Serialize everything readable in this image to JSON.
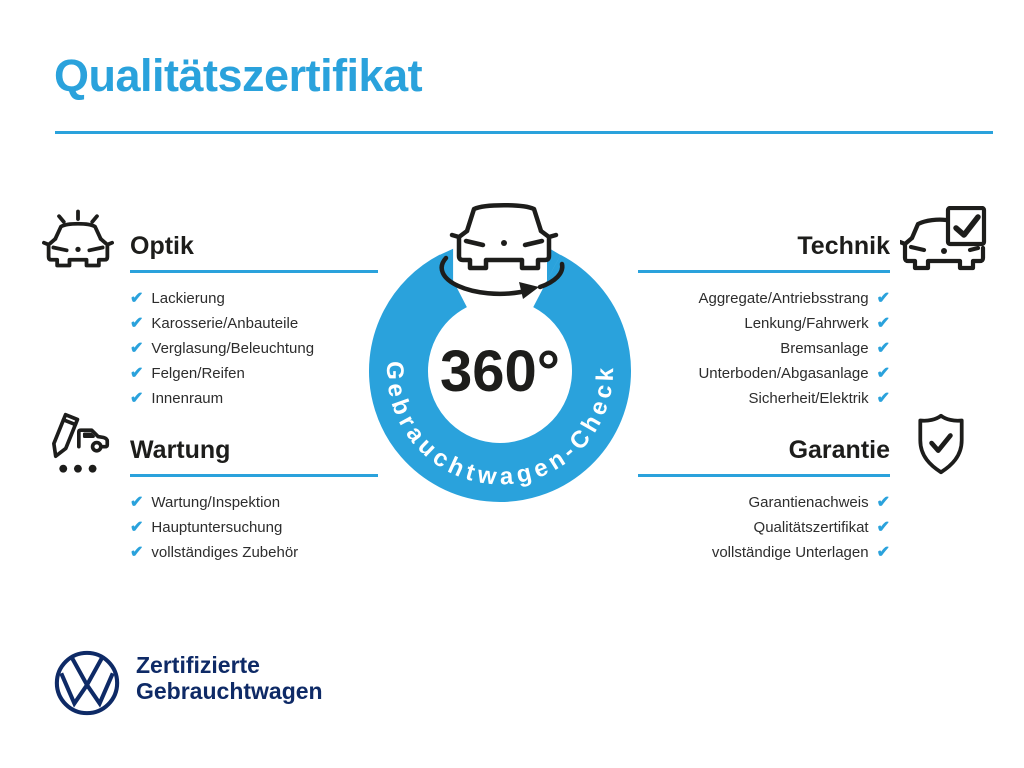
{
  "page": {
    "title": "Qualitätszertifikat"
  },
  "check_glyph": "✔",
  "colors": {
    "accent_blue": "#2AA2DC",
    "navy_blue": "#0E2A66",
    "dark_text": "#1D1D1B",
    "background": "#FFFFFF"
  },
  "center_badge": {
    "degree_label": "360°",
    "ring_label": "Gebrauchtwagen-Check",
    "icon": "rotating-car-icon"
  },
  "sections": [
    {
      "id": "optik",
      "title": "Optik",
      "icon": "shining-car-icon",
      "items": [
        "Lackierung",
        "Karosserie/Anbauteile",
        "Verglasung/Beleuchtung",
        "Felgen/Reifen",
        "Innenraum"
      ]
    },
    {
      "id": "technik",
      "title": "Technik",
      "icon": "car-checkbox-icon",
      "items": [
        "Aggregate/Antriebsstrang",
        "Lenkung/Fahrwerk",
        "Bremsanlage",
        "Unterboden/Abgasanlage",
        "Sicherheit/Elektrik"
      ]
    },
    {
      "id": "wartung",
      "title": "Wartung",
      "icon": "pencil-van-icon",
      "items": [
        "Wartung/Inspektion",
        "Hauptuntersuchung",
        "vollständiges Zubehör"
      ]
    },
    {
      "id": "garantie",
      "title": "Garantie",
      "icon": "shield-check-icon",
      "items": [
        "Garantienachweis",
        "Qualitätszertifikat",
        "vollständige Unterlagen"
      ]
    }
  ],
  "footer": {
    "logo": "vw-logo",
    "line1": "Zertifizierte",
    "line2": "Gebrauchtwagen"
  }
}
